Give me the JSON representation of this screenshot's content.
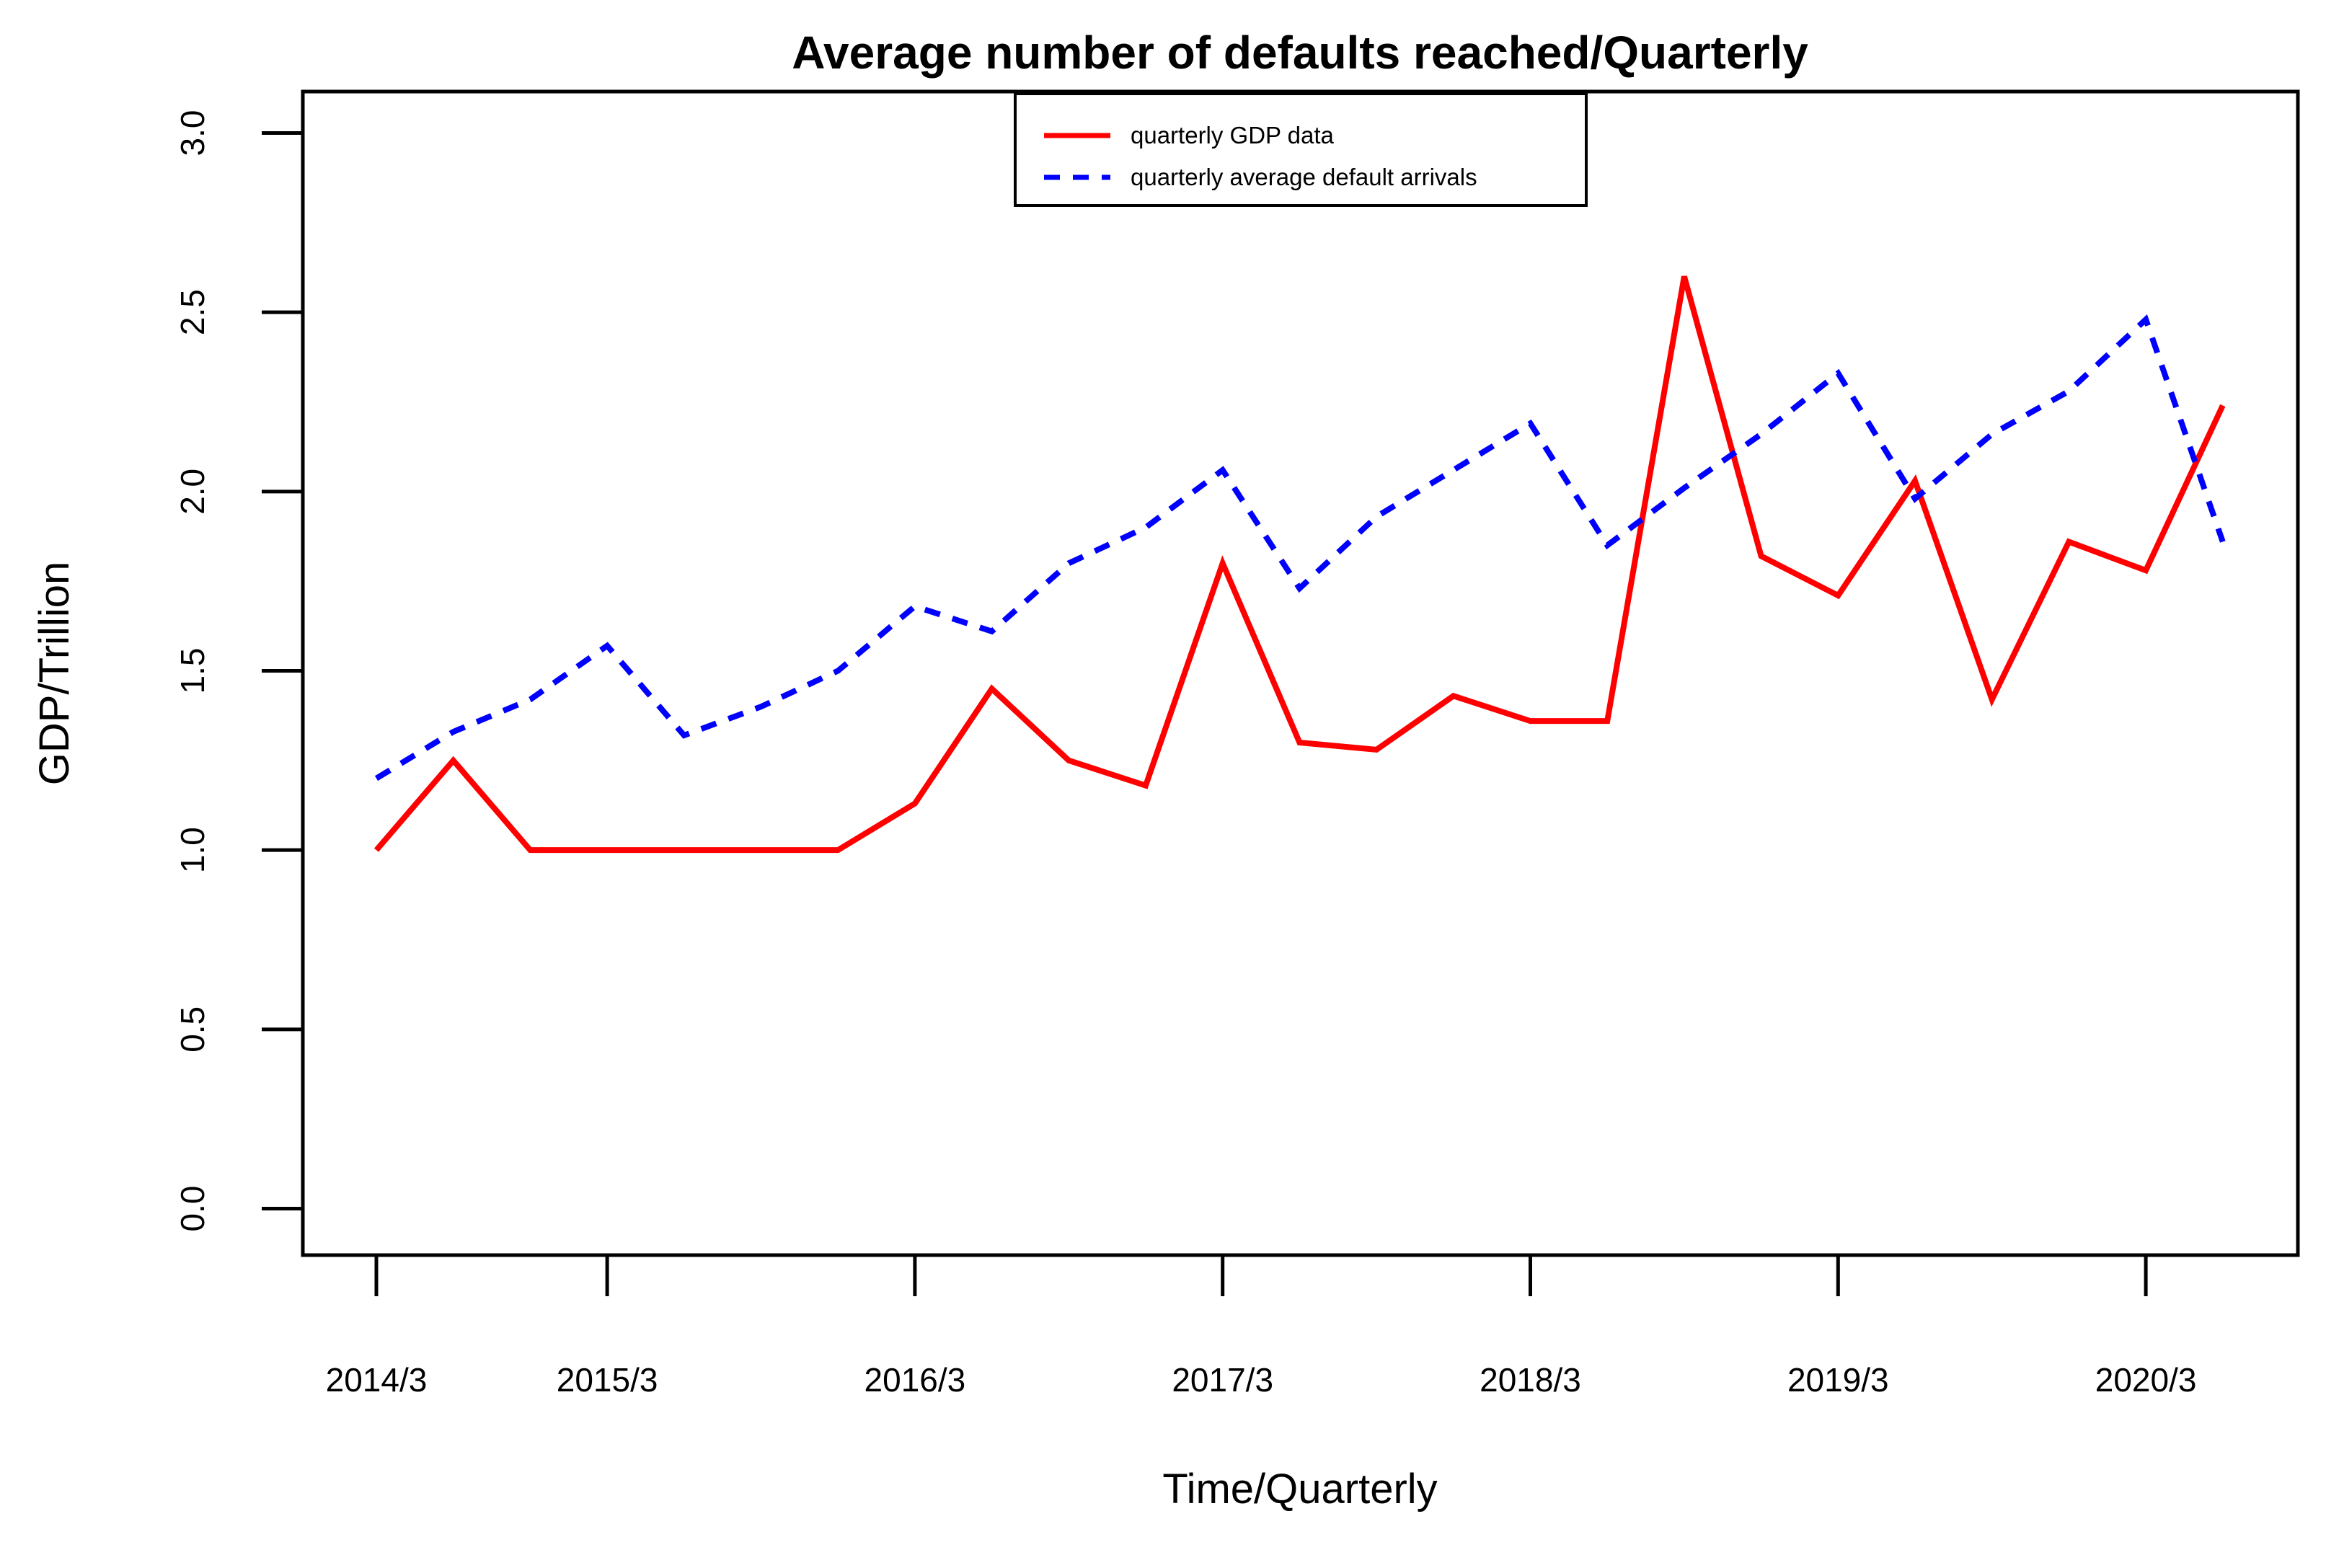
{
  "chart_data": {
    "type": "line",
    "title": "Average number of defaults reached/Quarterly",
    "xlabel": "Time/Quarterly",
    "ylabel": "GDP/Trillion",
    "ylim": [
      0.0,
      3.0
    ],
    "grid": false,
    "y_ticks": [
      "0.0",
      "0.5",
      "1.0",
      "1.5",
      "2.0",
      "2.5",
      "3.0"
    ],
    "x_ticks": [
      {
        "index": 0,
        "label": "2014/3"
      },
      {
        "index": 3,
        "label": "2015/3"
      },
      {
        "index": 7,
        "label": "2016/3"
      },
      {
        "index": 11,
        "label": "2017/3"
      },
      {
        "index": 15,
        "label": "2018/3"
      },
      {
        "index": 19,
        "label": "2019/3"
      },
      {
        "index": 23,
        "label": "2020/3"
      }
    ],
    "n_points": 25,
    "legend_position": "top-center",
    "series": [
      {
        "name": "quarterly GDP data",
        "color": "#ff0000",
        "style": "solid",
        "values": [
          1.0,
          1.25,
          1.0,
          1.0,
          1.0,
          1.0,
          1.0,
          1.13,
          1.45,
          1.25,
          1.18,
          1.8,
          1.3,
          1.28,
          1.43,
          1.36,
          1.36,
          2.6,
          1.82,
          1.71,
          2.03,
          1.42,
          1.86,
          1.78,
          2.24
        ]
      },
      {
        "name": "quarterly average default arrivals",
        "color": "#0000ff",
        "style": "dashed",
        "values": [
          1.2,
          1.33,
          1.42,
          1.57,
          1.32,
          1.4,
          1.5,
          1.68,
          1.61,
          1.8,
          1.9,
          2.06,
          1.73,
          1.93,
          2.06,
          2.19,
          1.85,
          2.01,
          2.16,
          2.33,
          1.98,
          2.16,
          2.28,
          2.48,
          1.86
        ]
      }
    ]
  }
}
